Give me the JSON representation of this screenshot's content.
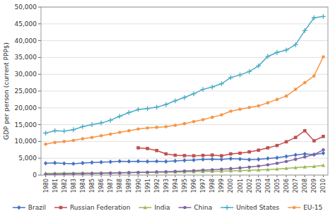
{
  "chart_data": {
    "type": "line",
    "x": [
      1980,
      1981,
      1982,
      1983,
      1984,
      1985,
      1986,
      1987,
      1988,
      1989,
      1990,
      1991,
      1992,
      1993,
      1994,
      1995,
      1996,
      1997,
      1998,
      1999,
      2000,
      2001,
      2002,
      2003,
      2004,
      2005,
      2006,
      2007,
      2008,
      2009,
      2010
    ],
    "xlim": [
      1979.5,
      2010.5
    ],
    "xticks": [
      1980,
      1981,
      1982,
      1983,
      1984,
      1985,
      1986,
      1987,
      1988,
      1989,
      1990,
      1991,
      1992,
      1993,
      1994,
      1995,
      1996,
      1997,
      1998,
      1999,
      2000,
      2001,
      2002,
      2003,
      2004,
      2005,
      2006,
      2007,
      2008,
      2009,
      2010
    ],
    "ylabel": "GDP per person (current PPP$)",
    "ylim": [
      0,
      50000
    ],
    "yticks": [
      0,
      {
        "value": 5000,
        "label": "5,000"
      },
      {
        "value": 10000,
        "label": "10,000"
      },
      {
        "value": 15000,
        "label": "15,000"
      },
      {
        "value": 20000,
        "label": "20,000"
      },
      {
        "value": 25000,
        "label": "25,000"
      },
      {
        "value": 30000,
        "label": "30,000"
      },
      {
        "value": 35000,
        "label": "35,000"
      },
      {
        "value": 40000,
        "label": "40,000"
      },
      {
        "value": 45000,
        "label": "45,000"
      },
      {
        "value": 50000,
        "label": "50,000"
      }
    ],
    "grid": true,
    "legend": "bottom",
    "series": [
      {
        "name": "Brazil",
        "color": "#4472C4",
        "marker": "diamond",
        "values": [
          3500,
          3620,
          3450,
          3380,
          3570,
          3730,
          3840,
          3950,
          4120,
          4060,
          4120,
          4030,
          4120,
          4050,
          4200,
          4350,
          4480,
          4650,
          4720,
          4650,
          4870,
          4760,
          4580,
          4680,
          4960,
          5160,
          5550,
          5980,
          6280,
          6090,
          6500
        ]
      },
      {
        "name": "Russian Federation",
        "color": "#C0504D",
        "marker": "square",
        "values": [
          null,
          null,
          null,
          null,
          null,
          null,
          null,
          null,
          null,
          null,
          8100,
          7900,
          7300,
          6300,
          5900,
          5800,
          5750,
          5850,
          5950,
          5750,
          6300,
          6500,
          6900,
          7400,
          8100,
          8800,
          9900,
          11200,
          13200,
          10200,
          11500
        ]
      },
      {
        "name": "India",
        "color": "#9BBB59",
        "marker": "triangle",
        "values": [
          500,
          530,
          555,
          575,
          605,
          630,
          650,
          675,
          710,
          745,
          775,
          790,
          815,
          845,
          885,
          940,
          995,
          1045,
          1095,
          1150,
          1240,
          1320,
          1405,
          1510,
          1640,
          1800,
          1990,
          2200,
          2430,
          2550,
          2900
        ]
      },
      {
        "name": "China",
        "color": "#8064A2",
        "marker": "circle",
        "values": [
          250,
          280,
          315,
          360,
          415,
          465,
          505,
          555,
          635,
          715,
          795,
          855,
          930,
          1010,
          1100,
          1210,
          1320,
          1460,
          1570,
          1710,
          1910,
          2120,
          2350,
          2680,
          3040,
          3500,
          4050,
          4700,
          5400,
          6100,
          7500
        ]
      },
      {
        "name": "United States",
        "color": "#4BACC6",
        "marker": "plus",
        "values": [
          12500,
          13200,
          13100,
          13500,
          14400,
          15000,
          15500,
          16300,
          17500,
          18600,
          19500,
          19800,
          20200,
          21000,
          22100,
          23100,
          24200,
          25500,
          26200,
          27200,
          29000,
          29800,
          30800,
          32500,
          35300,
          36500,
          37200,
          38800,
          43000,
          46800,
          47200
        ]
      },
      {
        "name": "EU-15",
        "color": "#F79646",
        "marker": "circle",
        "values": [
          9200,
          9700,
          10000,
          10300,
          10800,
          11200,
          11700,
          12200,
          12700,
          13200,
          13700,
          14000,
          14200,
          14400,
          14800,
          15300,
          15900,
          16500,
          17200,
          17900,
          19000,
          19600,
          20100,
          20600,
          21500,
          22500,
          23500,
          25500,
          27500,
          29500,
          35200
        ]
      }
    ]
  }
}
